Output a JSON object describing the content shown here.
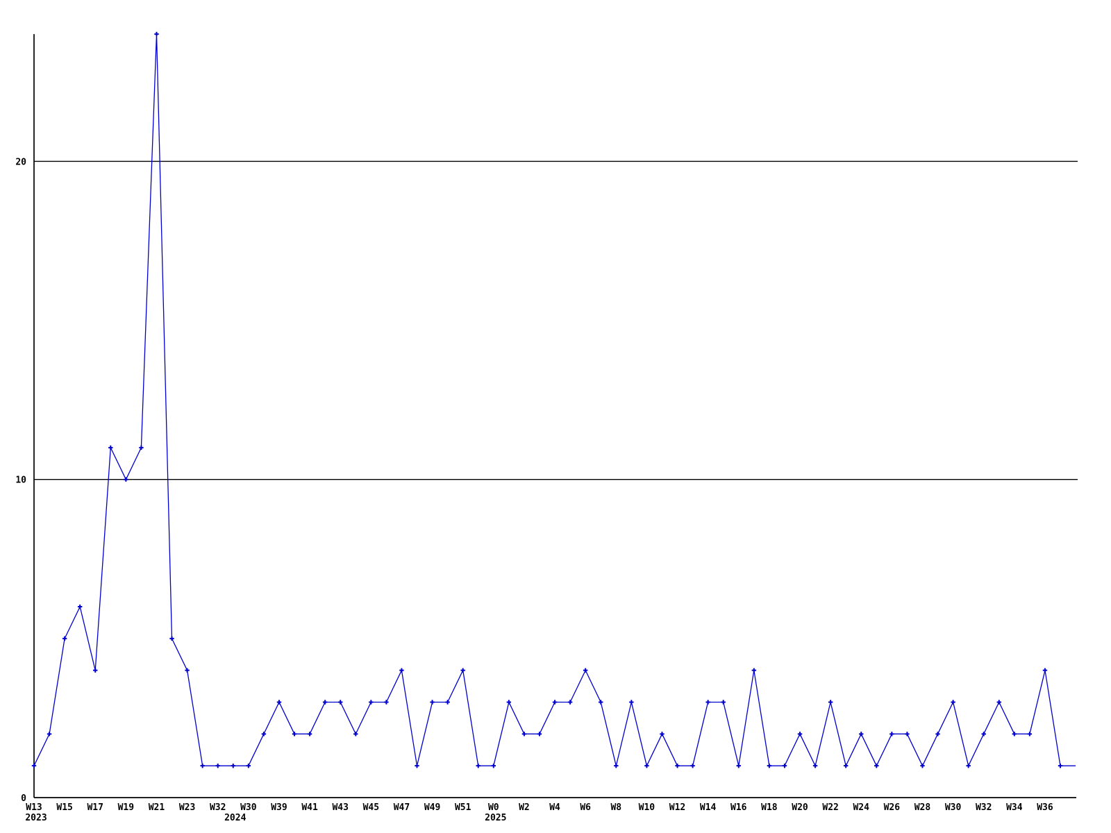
{
  "chart_data": {
    "type": "line",
    "title": "",
    "xlabel": "",
    "ylabel": "",
    "x_axis": {
      "tick_every": 2,
      "tick_labels": [
        "W13",
        "W15",
        "W17",
        "W19",
        "W21",
        "W23",
        "W32",
        "W30",
        "W39",
        "W41",
        "W43",
        "W45",
        "W47",
        "W49",
        "W51",
        "W0",
        "W2",
        "W4",
        "W6",
        "W8",
        "W10",
        "W12",
        "W14",
        "W16",
        "W18",
        "W20",
        "W22",
        "W24",
        "W26",
        "W28",
        "W30",
        "W32",
        "W34",
        "W36"
      ],
      "year_labels": [
        {
          "text": "2023",
          "point_index": 0
        },
        {
          "text": "2024",
          "point_index": 13
        },
        {
          "text": "2025",
          "point_index": 30
        }
      ]
    },
    "y_axis": {
      "ticks": [
        {
          "value": 0,
          "label": "0",
          "gridline": false
        },
        {
          "value": 10,
          "label": "10",
          "gridline": true
        },
        {
          "value": 20,
          "label": "20",
          "gridline": true
        }
      ],
      "range": [
        0,
        24
      ],
      "grid": true
    },
    "series": [
      {
        "name": "weekly-values",
        "marker": "plus",
        "values": [
          1,
          2,
          5,
          6,
          4,
          11,
          10,
          11,
          24,
          5,
          4,
          1,
          1,
          1,
          1,
          2,
          3,
          2,
          2,
          3,
          3,
          2,
          3,
          3,
          4,
          1,
          3,
          3,
          4,
          1,
          1,
          3,
          2,
          2,
          3,
          3,
          4,
          3,
          1,
          3,
          1,
          2,
          1,
          1,
          3,
          3,
          1,
          4,
          1,
          1,
          2,
          1,
          3,
          1,
          2,
          1,
          2,
          2,
          1,
          2,
          3,
          1,
          2,
          3,
          2,
          2,
          4,
          1,
          1
        ]
      }
    ],
    "legend": null,
    "colors": {
      "line": "#0000cc",
      "axis": "#000000",
      "grid": "#000000",
      "background": "#ffffff",
      "text": "#000000"
    }
  }
}
